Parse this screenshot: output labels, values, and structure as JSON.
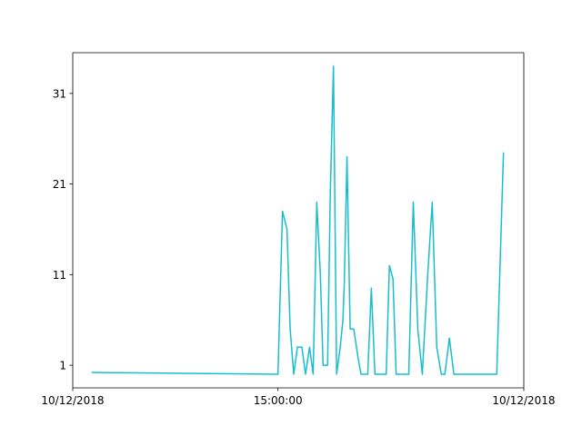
{
  "chart_data": {
    "type": "line",
    "title": "",
    "xlabel": "",
    "ylabel": "",
    "xlim": [
      0,
      100
    ],
    "ylim": [
      -1.5,
      35.5
    ],
    "xticks": [
      {
        "x": 0,
        "label": "10/12/2018"
      },
      {
        "x": 45.5,
        "label": "15:00:00"
      },
      {
        "x": 100,
        "label": "10/12/2018"
      }
    ],
    "yticks": [
      1,
      11,
      21,
      31
    ],
    "grid": false,
    "legend": "none",
    "series": [
      {
        "color": "#17becf",
        "x": [
          4.2,
          45.5,
          46.5,
          47.5,
          48.2,
          49.0,
          49.8,
          50.8,
          51.6,
          52.5,
          53.3,
          54.1,
          54.9,
          55.5,
          55.9,
          56.5,
          57.1,
          57.8,
          58.5,
          59.3,
          59.9,
          60.2,
          60.8,
          61.5,
          62.3,
          63.2,
          63.9,
          64.6,
          65.4,
          66.2,
          67.0,
          68.0,
          69.5,
          70.2,
          71.0,
          71.7,
          72.3,
          74.5,
          75.5,
          76.5,
          77.5,
          78.7,
          79.7,
          80.7,
          81.7,
          82.5,
          83.5,
          84.5,
          85.5,
          86.5,
          88.0,
          89.0,
          94.0,
          95.5
        ],
        "y": [
          0.2,
          0.0,
          18.0,
          16.0,
          5.0,
          0.0,
          3.0,
          3.0,
          0.0,
          3.0,
          0.0,
          19.0,
          11.0,
          1.0,
          1.0,
          1.0,
          20.0,
          34.0,
          0.0,
          3.0,
          6.0,
          10.0,
          24.0,
          5.0,
          5.0,
          2.0,
          0.0,
          0.0,
          0.0,
          9.5,
          0.0,
          0.0,
          0.0,
          12.0,
          10.5,
          0.0,
          0.0,
          0.0,
          19.0,
          5.0,
          0.0,
          11.0,
          19.0,
          3.0,
          0.0,
          0.0,
          4.0,
          0.0,
          0.0,
          0.0,
          0.0,
          0.0,
          0.0,
          24.5
        ]
      }
    ]
  }
}
